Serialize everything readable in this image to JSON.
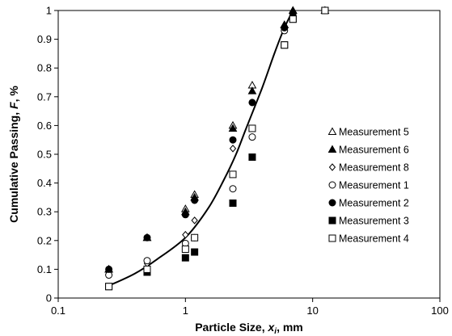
{
  "chart_data": {
    "type": "scatter",
    "xlabel": {
      "main": "Particle Size, ",
      "var": "x",
      "sub": "i",
      "unit": ", mm"
    },
    "ylabel": {
      "main": "Cumulative Passing, ",
      "var": "F",
      "unit": ", %"
    },
    "xscale": "log",
    "xlim": [
      0.1,
      100
    ],
    "ylim": [
      0,
      1
    ],
    "x_ticks": [
      "0.1",
      "1",
      "10",
      "100"
    ],
    "y_ticks": [
      "0",
      "0.1",
      "0.2",
      "0.3",
      "0.4",
      "0.5",
      "0.6",
      "0.7",
      "0.8",
      "0.9",
      "1"
    ],
    "grid": false,
    "legend_position": "right",
    "series": [
      {
        "name": "Measurement 5",
        "marker": "triangle-open",
        "points": [
          [
            0.25,
            0.1
          ],
          [
            0.5,
            0.21
          ],
          [
            1.0,
            0.31
          ],
          [
            1.18,
            0.36
          ],
          [
            2.36,
            0.6
          ],
          [
            3.35,
            0.74
          ],
          [
            6.0,
            0.95
          ],
          [
            7.0,
            1.0
          ],
          [
            12.5,
            1.0
          ]
        ]
      },
      {
        "name": "Measurement 6",
        "marker": "triangle-filled",
        "points": [
          [
            0.25,
            0.1
          ],
          [
            0.5,
            0.21
          ],
          [
            1.0,
            0.3
          ],
          [
            1.18,
            0.35
          ],
          [
            2.36,
            0.59
          ],
          [
            3.35,
            0.72
          ],
          [
            6.0,
            0.95
          ],
          [
            7.0,
            1.0
          ],
          [
            12.5,
            1.0
          ]
        ]
      },
      {
        "name": "Measurement 8",
        "marker": "diamond-open",
        "points": [
          [
            0.25,
            0.09
          ],
          [
            0.5,
            0.12
          ],
          [
            1.0,
            0.22
          ],
          [
            1.18,
            0.27
          ],
          [
            2.36,
            0.52
          ],
          [
            3.35,
            0.68
          ],
          [
            6.0,
            0.94
          ],
          [
            7.0,
            0.99
          ],
          [
            12.5,
            1.0
          ]
        ]
      },
      {
        "name": "Measurement 1",
        "marker": "circle-open",
        "points": [
          [
            0.25,
            0.08
          ],
          [
            0.5,
            0.13
          ],
          [
            1.0,
            0.19
          ],
          [
            1.18,
            0.21
          ],
          [
            2.36,
            0.38
          ],
          [
            3.35,
            0.56
          ],
          [
            6.0,
            0.93
          ],
          [
            7.0,
            0.98
          ],
          [
            12.5,
            1.0
          ]
        ]
      },
      {
        "name": "Measurement 2",
        "marker": "circle-filled",
        "points": [
          [
            0.25,
            0.1
          ],
          [
            0.5,
            0.21
          ],
          [
            1.0,
            0.29
          ],
          [
            1.18,
            0.34
          ],
          [
            2.36,
            0.55
          ],
          [
            3.35,
            0.68
          ],
          [
            6.0,
            0.94
          ],
          [
            7.0,
            0.99
          ],
          [
            12.5,
            1.0
          ]
        ]
      },
      {
        "name": "Measurement 3",
        "marker": "square-filled",
        "points": [
          [
            0.25,
            0.04
          ],
          [
            0.5,
            0.09
          ],
          [
            1.0,
            0.14
          ],
          [
            1.18,
            0.16
          ],
          [
            2.36,
            0.33
          ],
          [
            3.35,
            0.49
          ],
          [
            6.0,
            0.88
          ],
          [
            7.0,
            0.97
          ],
          [
            12.5,
            1.0
          ]
        ]
      },
      {
        "name": "Measurement 4",
        "marker": "square-open",
        "points": [
          [
            0.25,
            0.04
          ],
          [
            0.5,
            0.1
          ],
          [
            1.0,
            0.17
          ],
          [
            1.18,
            0.21
          ],
          [
            2.36,
            0.43
          ],
          [
            3.35,
            0.59
          ],
          [
            6.0,
            0.88
          ],
          [
            7.0,
            0.97
          ],
          [
            12.5,
            1.0
          ]
        ]
      }
    ],
    "fit_curve": [
      [
        0.25,
        0.043
      ],
      [
        0.4,
        0.085
      ],
      [
        0.6,
        0.135
      ],
      [
        1.0,
        0.21
      ],
      [
        1.5,
        0.31
      ],
      [
        2.0,
        0.41
      ],
      [
        2.5,
        0.5
      ],
      [
        3.0,
        0.59
      ],
      [
        4.0,
        0.73
      ],
      [
        5.0,
        0.85
      ],
      [
        6.0,
        0.94
      ],
      [
        7.0,
        1.0
      ]
    ]
  }
}
